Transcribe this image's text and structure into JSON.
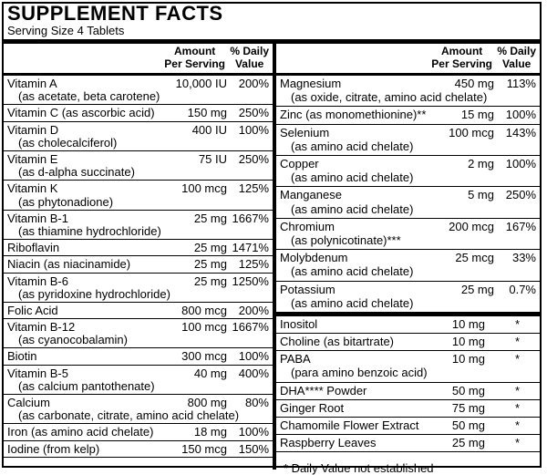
{
  "title": "SUPPLEMENT FACTS",
  "serving_size": "Serving Size 4 Tablets",
  "headers": {
    "amount_line1": "Amount",
    "amount_line2": "Per Serving",
    "dv_line1": "% Daily",
    "dv_line2": "Value"
  },
  "left_rows": [
    {
      "name": "Vitamin A",
      "sub": "(as acetate, beta carotene)",
      "amount": "10,000 IU",
      "dv": "200%"
    },
    {
      "name": "Vitamin C (as ascorbic acid)",
      "sub": "",
      "amount": "150 mg",
      "dv": "250%"
    },
    {
      "name": "Vitamin D",
      "sub": "(as cholecalciferol)",
      "amount": "400 IU",
      "dv": "100%"
    },
    {
      "name": "Vitamin E",
      "sub": "(as d-alpha succinate)",
      "amount": "75 IU",
      "dv": "250%"
    },
    {
      "name": "Vitamin K",
      "sub": "(as phytonadione)",
      "amount": "100 mcg",
      "dv": "125%"
    },
    {
      "name": "Vitamin B-1",
      "sub": "(as thiamine hydrochloride)",
      "amount": "25 mg",
      "dv": "1667%"
    },
    {
      "name": "Riboflavin",
      "sub": "",
      "amount": "25 mg",
      "dv": "1471%"
    },
    {
      "name": "Niacin (as niacinamide)",
      "sub": "",
      "amount": "25 mg",
      "dv": "125%"
    },
    {
      "name": "Vitamin B-6",
      "sub": "(as pyridoxine hydrochloride)",
      "amount": "25 mg",
      "dv": "1250%"
    },
    {
      "name": "Folic Acid",
      "sub": "",
      "amount": "800 mcg",
      "dv": "200%"
    },
    {
      "name": "Vitamin B-12",
      "sub": "(as cyanocobalamin)",
      "amount": "100 mcg",
      "dv": "1667%"
    },
    {
      "name": "Biotin",
      "sub": "",
      "amount": "300 mcg",
      "dv": "100%"
    },
    {
      "name": "Vitamin B-5",
      "sub": "(as calcium pantothenate)",
      "amount": "40 mg",
      "dv": "400%"
    },
    {
      "name": "Calcium",
      "sub": "(as carbonate, citrate, amino acid chelate)",
      "amount": "800 mg",
      "dv": "80%"
    },
    {
      "name": "Iron (as amino acid chelate)",
      "sub": "",
      "amount": "18 mg",
      "dv": "100%"
    },
    {
      "name": "Iodine (from kelp)",
      "sub": "",
      "amount": "150 mcg",
      "dv": "150%"
    }
  ],
  "right_rows": [
    {
      "name": "Magnesium",
      "sub": "(as oxide, citrate, amino acid chelate)",
      "amount": "450 mg",
      "dv": "113%"
    },
    {
      "name": "Zinc (as monomethionine)**",
      "sub": "",
      "amount": "15 mg",
      "dv": "100%"
    },
    {
      "name": "Selenium",
      "sub": "(as amino acid chelate)",
      "amount": "100 mcg",
      "dv": "143%"
    },
    {
      "name": "Copper",
      "sub": "(as amino acid chelate)",
      "amount": "2 mg",
      "dv": "100%"
    },
    {
      "name": "Manganese",
      "sub": "(as amino acid chelate)",
      "amount": "5 mg",
      "dv": "250%"
    },
    {
      "name": "Chromium",
      "sub": "(as polynicotinate)***",
      "amount": "200 mcg",
      "dv": "167%"
    },
    {
      "name": "Molybdenum",
      "sub": "(as amino acid chelate)",
      "amount": "25 mcg",
      "dv": "33%"
    },
    {
      "name": "Potassium",
      "sub": "(as amino acid chelate)",
      "amount": "25 mg",
      "dv": "0.7%"
    }
  ],
  "other_rows": [
    {
      "name": "Inositol",
      "sub": "",
      "amount": "10 mg",
      "dv": "*"
    },
    {
      "name": "Choline (as bitartrate)",
      "sub": "",
      "amount": "10 mg",
      "dv": "*"
    },
    {
      "name": "PABA",
      "sub": "(para amino benzoic acid)",
      "amount": "10 mg",
      "dv": "*"
    },
    {
      "name": "DHA**** Powder",
      "sub": "",
      "amount": "50 mg",
      "dv": "*"
    },
    {
      "name": "Ginger Root",
      "sub": "",
      "amount": "75 mg",
      "dv": "*"
    },
    {
      "name": "Chamomile Flower Extract",
      "sub": "",
      "amount": "50 mg",
      "dv": "*"
    },
    {
      "name": "Raspberry Leaves",
      "sub": "",
      "amount": "25 mg",
      "dv": "*"
    }
  ],
  "footnote": "* Daily Value not established"
}
